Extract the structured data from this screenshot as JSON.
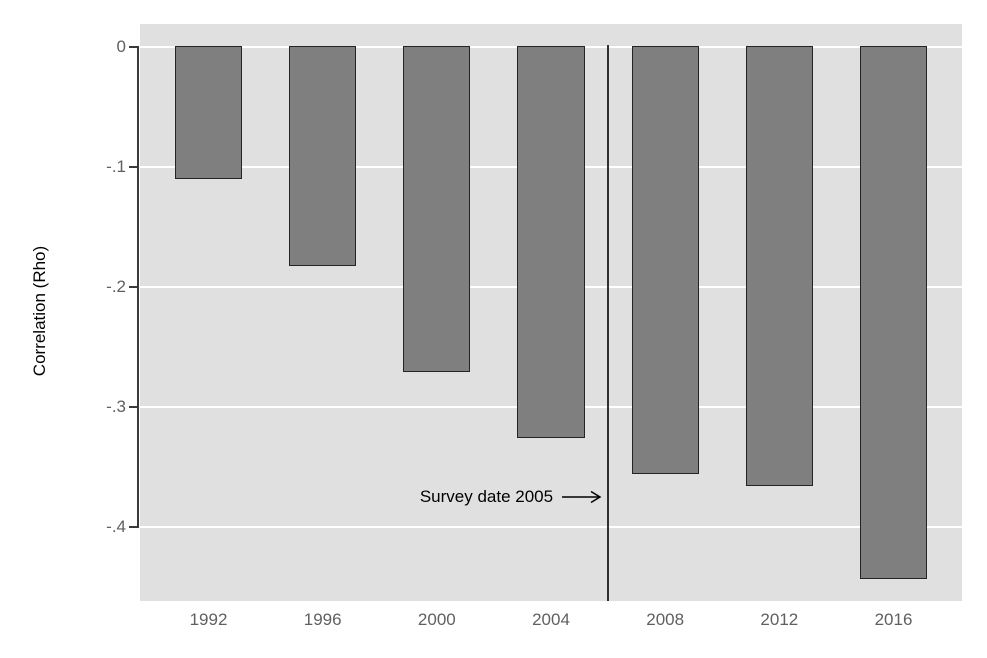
{
  "chart_data": {
    "type": "bar",
    "title": "",
    "xlabel": "",
    "ylabel": "Correlation (Rho)",
    "categories": [
      "1992",
      "1996",
      "2000",
      "2004",
      "2008",
      "2012",
      "2016"
    ],
    "x": [
      1992,
      1996,
      2000,
      2004,
      2008,
      2012,
      2016
    ],
    "values": [
      -0.11,
      -0.183,
      -0.271,
      -0.326,
      -0.356,
      -0.366,
      -0.444
    ],
    "yticks": [
      {
        "value": 0,
        "label": "0"
      },
      {
        "value": -0.1,
        "label": "-.1"
      },
      {
        "value": -0.2,
        "label": "-.2"
      },
      {
        "value": -0.3,
        "label": "-.3"
      },
      {
        "value": -0.4,
        "label": "-.4"
      }
    ],
    "xlim": [
      1989.6,
      2018.4
    ],
    "ylim": [
      -0.462,
      0.019
    ],
    "bar_width_years": 2.35,
    "grid": true,
    "legend": "none",
    "reference_line": {
      "x": 2006
    },
    "annotation": {
      "text": "Survey date 2005",
      "y": -0.375,
      "arrow": "right"
    }
  },
  "colors": {
    "page_bg": "#ffffff",
    "plot_bg": "#e0e0e0",
    "gridline": "#ffffff",
    "bar_fill": "#7f7f7f",
    "bar_stroke": "#242424",
    "axis_line": "#3a3a3a",
    "tick_label": "#606060",
    "axis_title": "#000000",
    "annotation_text": "#000000",
    "reference_line": "#303030"
  }
}
